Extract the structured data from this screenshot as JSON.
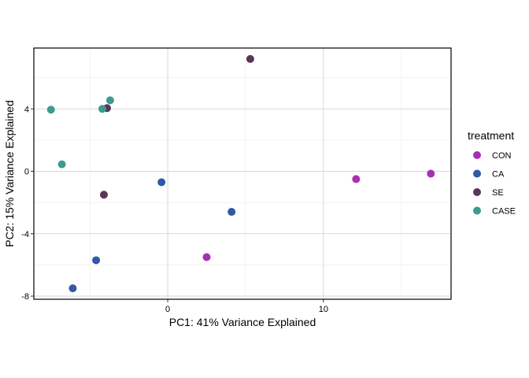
{
  "chart_data": {
    "type": "scatter",
    "title": "",
    "xlabel": "PC1: 41% Variance Explained",
    "ylabel": "PC2: 15% Variance Explained",
    "xlim": [
      -8.6,
      18.2
    ],
    "ylim": [
      -8.2,
      7.9
    ],
    "x_ticks": [
      0,
      10
    ],
    "x_tick_labels": [
      "0",
      "10"
    ],
    "x_minor_ticks": [
      -5,
      5,
      15
    ],
    "y_ticks": [
      -8,
      -4,
      0,
      4
    ],
    "y_tick_labels": [
      "-8",
      "-4",
      "0",
      "4"
    ],
    "y_minor_ticks": [
      -6,
      -2,
      2,
      6
    ],
    "grid": true,
    "legend": {
      "title": "treatment",
      "position": "right"
    },
    "series": [
      {
        "name": "CON",
        "color": "#a72fb3",
        "points": [
          [
            2.5,
            -5.5
          ],
          [
            12.1,
            -0.5
          ],
          [
            16.9,
            -0.15
          ]
        ]
      },
      {
        "name": "CA",
        "color": "#2f5aa5",
        "points": [
          [
            -0.4,
            -0.7
          ],
          [
            4.1,
            -2.6
          ],
          [
            -4.6,
            -5.7
          ],
          [
            -6.1,
            -7.5
          ]
        ]
      },
      {
        "name": "SE",
        "color": "#5a3658",
        "points": [
          [
            5.3,
            7.2
          ],
          [
            -3.9,
            4.05
          ],
          [
            -4.1,
            -1.5
          ]
        ]
      },
      {
        "name": "CASE",
        "color": "#3c9b8e",
        "points": [
          [
            -7.5,
            3.95
          ],
          [
            -4.2,
            4.0
          ],
          [
            -3.7,
            4.55
          ],
          [
            -6.8,
            0.45
          ]
        ]
      }
    ]
  }
}
